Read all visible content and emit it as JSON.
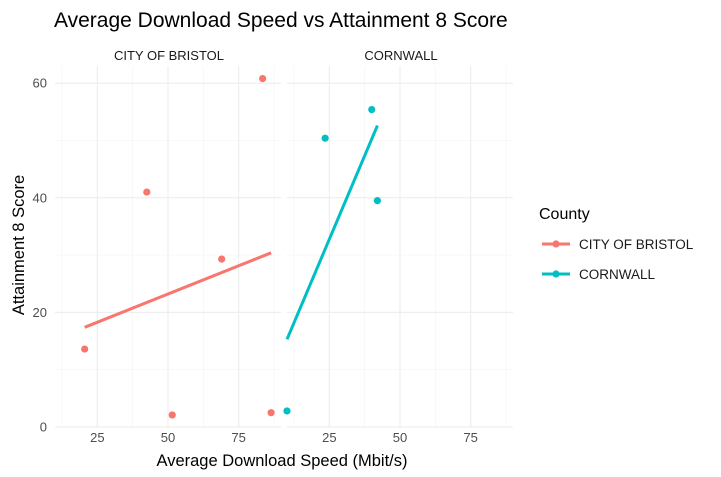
{
  "chart_data": {
    "type": "scatter",
    "title": "Average Download Speed vs Attainment 8 Score",
    "xlabel": "Average Download Speed (Mbit/s)",
    "ylabel": "Attainment 8 Score",
    "xlim": [
      10,
      90
    ],
    "ylim": [
      0,
      63
    ],
    "x_ticks": [
      25,
      50,
      75
    ],
    "y_ticks": [
      0,
      20,
      40,
      60
    ],
    "grid": true,
    "legend": {
      "title": "County",
      "position": "right",
      "entries": [
        "CITY OF BRISTOL",
        "CORNWALL"
      ]
    },
    "panels": [
      {
        "name": "CITY OF BRISTOL",
        "color": "#F8766D",
        "points": [
          {
            "x": 20.5,
            "y": 13.6
          },
          {
            "x": 42.5,
            "y": 41.0
          },
          {
            "x": 51.5,
            "y": 2.1
          },
          {
            "x": 69.0,
            "y": 29.3
          },
          {
            "x": 83.5,
            "y": 60.8
          },
          {
            "x": 86.5,
            "y": 2.5
          }
        ],
        "trend": {
          "x": [
            20.5,
            86.5
          ],
          "y": [
            17.4,
            30.4
          ]
        }
      },
      {
        "name": "CORNWALL",
        "color": "#00BFC4",
        "points": [
          {
            "x": 10.0,
            "y": 2.8
          },
          {
            "x": 23.5,
            "y": 50.4
          },
          {
            "x": 40.0,
            "y": 55.4
          },
          {
            "x": 42.0,
            "y": 39.5
          }
        ],
        "trend": {
          "x": [
            10.0,
            42.0
          ],
          "y": [
            15.3,
            52.6
          ]
        }
      }
    ]
  }
}
